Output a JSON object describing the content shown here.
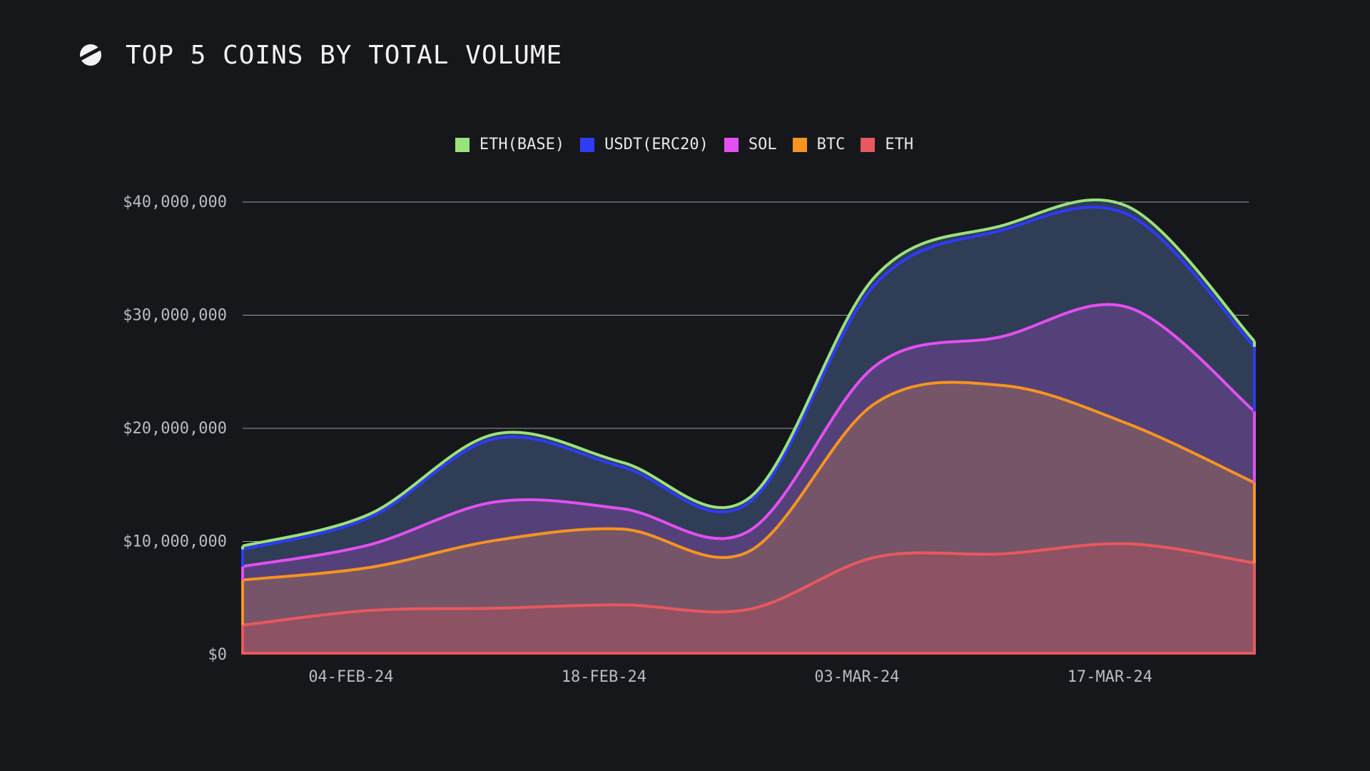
{
  "header": {
    "title": "TOP 5 COINS BY TOTAL VOLUME",
    "logo_icon": "slash-circle-logo-icon"
  },
  "chart_data": {
    "type": "area",
    "title": "TOP 5 COINS BY TOTAL VOLUME",
    "stacked": true,
    "legend_position": "top-center",
    "grid": true,
    "xlabel": "",
    "ylabel": "",
    "ylim": [
      0,
      40000000
    ],
    "y_ticks": [
      0,
      10000000,
      20000000,
      30000000,
      40000000
    ],
    "y_tick_labels": [
      "$0",
      "$10,000,000",
      "$20,000,000",
      "$30,000,000",
      "$40,000,000"
    ],
    "x_tick_labels": [
      "04-FEB-24",
      "18-FEB-24",
      "03-MAR-24",
      "17-MAR-24"
    ],
    "x": [
      "2024-01-29",
      "2024-02-05",
      "2024-02-12",
      "2024-02-19",
      "2024-02-26",
      "2024-03-04",
      "2024-03-11",
      "2024-03-18",
      "2024-03-25"
    ],
    "legend_order": [
      "ETH(BASE)",
      "USDT(ERC20)",
      "SOL",
      "BTC",
      "ETH"
    ],
    "series": [
      {
        "name": "ETH",
        "color": "#e8585e",
        "values": [
          2600000,
          3900000,
          4100000,
          4400000,
          4000000,
          8600000,
          8900000,
          9800000,
          8100000
        ]
      },
      {
        "name": "BTC",
        "color": "#f5941f",
        "values": [
          4000000,
          3800000,
          6000000,
          6700000,
          5100000,
          13600000,
          14900000,
          10600000,
          7100000
        ]
      },
      {
        "name": "SOL",
        "color": "#e44ff0",
        "values": [
          1200000,
          2000000,
          3400000,
          1800000,
          1800000,
          3300000,
          4300000,
          10300000,
          6300000
        ]
      },
      {
        "name": "USDT(ERC20)",
        "color": "#2f3bf5",
        "values": [
          1500000,
          2400000,
          5600000,
          3700000,
          2500000,
          7200000,
          9400000,
          8200000,
          5700000
        ]
      },
      {
        "name": "ETH(BASE)",
        "color": "#9ae27c",
        "values": [
          300000,
          300000,
          400000,
          400000,
          400000,
          700000,
          400000,
          700000,
          500000
        ]
      }
    ]
  }
}
